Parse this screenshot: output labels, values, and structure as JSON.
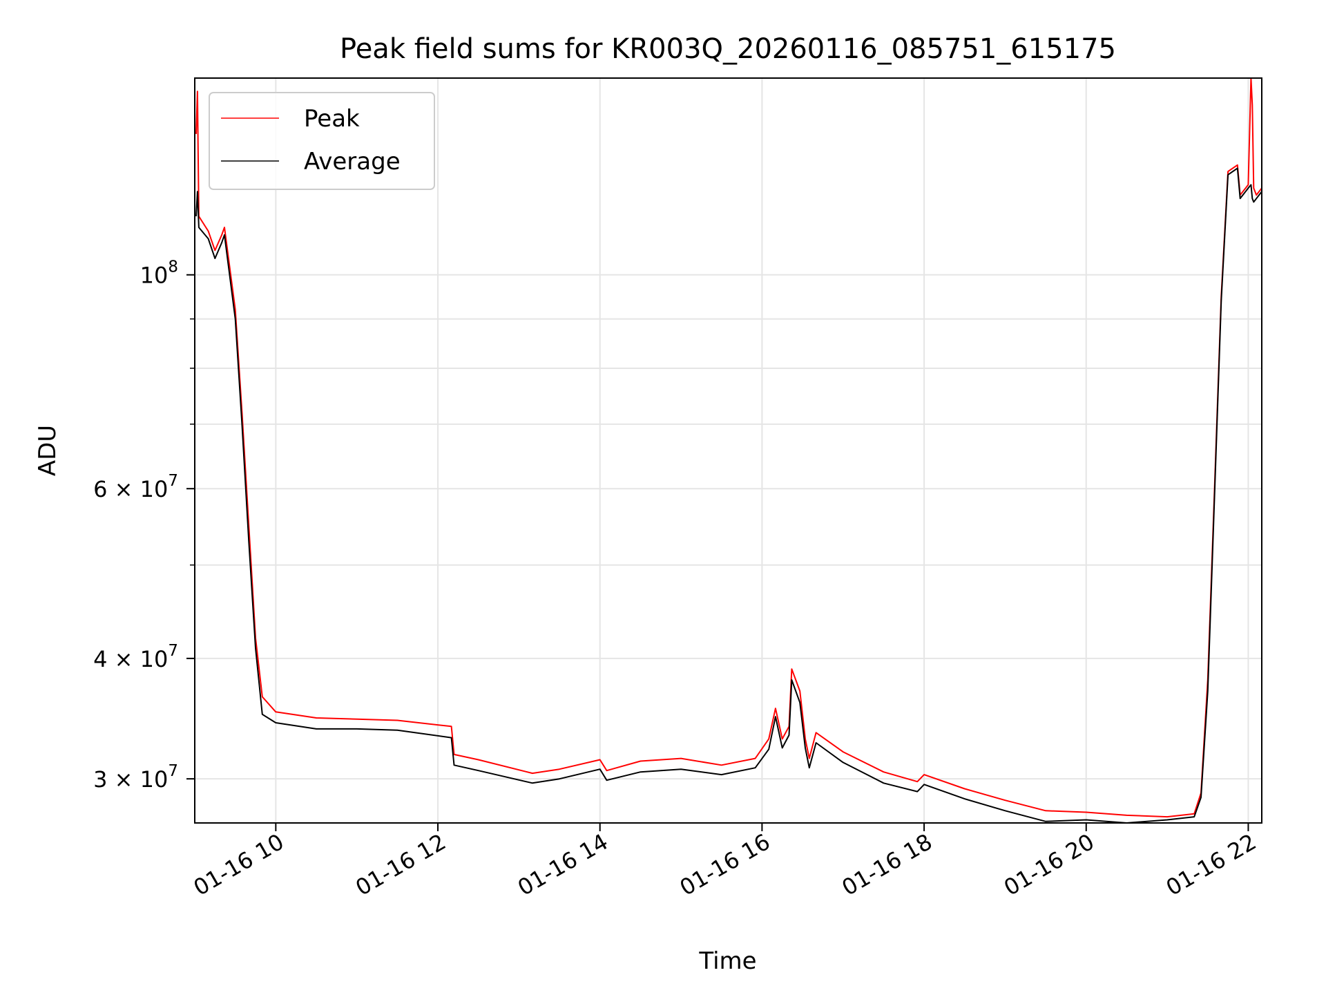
{
  "chart_data": {
    "type": "line",
    "title": "Peak field sums for KR003Q_20260116_085751_615175",
    "xlabel": "Time",
    "ylabel": "ADU",
    "yscale": "log",
    "grid": true,
    "legend_position": "top-left",
    "xlim": [
      "2026-01-16 09:00",
      "2026-01-16 22:10"
    ],
    "ylim": [
      27000000,
      160000000
    ],
    "x_ticks": [
      {
        "value": "2026-01-16 10:00",
        "label": "01-16 10"
      },
      {
        "value": "2026-01-16 12:00",
        "label": "01-16 12"
      },
      {
        "value": "2026-01-16 14:00",
        "label": "01-16 14"
      },
      {
        "value": "2026-01-16 16:00",
        "label": "01-16 16"
      },
      {
        "value": "2026-01-16 18:00",
        "label": "01-16 18"
      },
      {
        "value": "2026-01-16 20:00",
        "label": "01-16 20"
      },
      {
        "value": "2026-01-16 22:00",
        "label": "01-16 22"
      }
    ],
    "y_ticks": [
      {
        "value": 100000000,
        "label_base": "10",
        "label_exp": "8"
      },
      {
        "value": 60000000,
        "label_base": "6 × 10",
        "label_exp": "7"
      },
      {
        "value": 40000000,
        "label_base": "4 × 10",
        "label_exp": "7"
      },
      {
        "value": 30000000,
        "label_base": "3 × 10",
        "label_exp": "7"
      }
    ],
    "series": [
      {
        "name": "Peak",
        "color": "#ff0000",
        "points": [
          [
            "2026-01-16 09:01",
            140000000
          ],
          [
            "2026-01-16 09:02",
            155000000
          ],
          [
            "2026-01-16 09:03",
            115000000
          ],
          [
            "2026-01-16 09:10",
            111000000
          ],
          [
            "2026-01-16 09:15",
            106000000
          ],
          [
            "2026-01-16 09:20",
            110000000
          ],
          [
            "2026-01-16 09:22",
            112000000
          ],
          [
            "2026-01-16 09:25",
            104000000
          ],
          [
            "2026-01-16 09:30",
            92000000
          ],
          [
            "2026-01-16 09:35",
            72000000
          ],
          [
            "2026-01-16 09:40",
            55000000
          ],
          [
            "2026-01-16 09:45",
            42000000
          ],
          [
            "2026-01-16 09:50",
            36500000
          ],
          [
            "2026-01-16 10:00",
            35200000
          ],
          [
            "2026-01-16 10:30",
            34700000
          ],
          [
            "2026-01-16 11:00",
            34600000
          ],
          [
            "2026-01-16 11:30",
            34500000
          ],
          [
            "2026-01-16 12:10",
            34000000
          ],
          [
            "2026-01-16 12:12",
            31800000
          ],
          [
            "2026-01-16 12:30",
            31400000
          ],
          [
            "2026-01-16 13:10",
            30400000
          ],
          [
            "2026-01-16 13:30",
            30700000
          ],
          [
            "2026-01-16 14:00",
            31400000
          ],
          [
            "2026-01-16 14:05",
            30600000
          ],
          [
            "2026-01-16 14:30",
            31300000
          ],
          [
            "2026-01-16 15:00",
            31500000
          ],
          [
            "2026-01-16 15:30",
            31000000
          ],
          [
            "2026-01-16 15:55",
            31500000
          ],
          [
            "2026-01-16 16:05",
            33000000
          ],
          [
            "2026-01-16 16:10",
            35500000
          ],
          [
            "2026-01-16 16:15",
            33000000
          ],
          [
            "2026-01-16 16:20",
            34000000
          ],
          [
            "2026-01-16 16:22",
            39000000
          ],
          [
            "2026-01-16 16:28",
            37000000
          ],
          [
            "2026-01-16 16:32",
            33000000
          ],
          [
            "2026-01-16 16:35",
            31500000
          ],
          [
            "2026-01-16 16:40",
            33500000
          ],
          [
            "2026-01-16 17:00",
            32000000
          ],
          [
            "2026-01-16 17:30",
            30500000
          ],
          [
            "2026-01-16 17:55",
            29800000
          ],
          [
            "2026-01-16 18:00",
            30300000
          ],
          [
            "2026-01-16 18:30",
            29300000
          ],
          [
            "2026-01-16 19:00",
            28500000
          ],
          [
            "2026-01-16 19:30",
            27800000
          ],
          [
            "2026-01-16 20:00",
            27700000
          ],
          [
            "2026-01-16 20:30",
            27500000
          ],
          [
            "2026-01-16 21:00",
            27400000
          ],
          [
            "2026-01-16 21:20",
            27600000
          ],
          [
            "2026-01-16 21:25",
            29000000
          ],
          [
            "2026-01-16 21:30",
            38000000
          ],
          [
            "2026-01-16 21:35",
            60000000
          ],
          [
            "2026-01-16 21:40",
            95000000
          ],
          [
            "2026-01-16 21:45",
            128000000
          ],
          [
            "2026-01-16 21:52",
            130000000
          ],
          [
            "2026-01-16 21:54",
            121000000
          ],
          [
            "2026-01-16 22:00",
            124000000
          ],
          [
            "2026-01-16 22:02",
            160000000
          ],
          [
            "2026-01-16 22:03",
            150000000
          ],
          [
            "2026-01-16 22:04",
            123000000
          ],
          [
            "2026-01-16 22:06",
            121000000
          ],
          [
            "2026-01-16 22:10",
            123000000
          ]
        ]
      },
      {
        "name": "Average",
        "color": "#000000",
        "points": [
          [
            "2026-01-16 09:01",
            115000000
          ],
          [
            "2026-01-16 09:02",
            122000000
          ],
          [
            "2026-01-16 09:03",
            112000000
          ],
          [
            "2026-01-16 09:10",
            109000000
          ],
          [
            "2026-01-16 09:15",
            104000000
          ],
          [
            "2026-01-16 09:20",
            108000000
          ],
          [
            "2026-01-16 09:22",
            110000000
          ],
          [
            "2026-01-16 09:25",
            102000000
          ],
          [
            "2026-01-16 09:30",
            90000000
          ],
          [
            "2026-01-16 09:35",
            70000000
          ],
          [
            "2026-01-16 09:40",
            53000000
          ],
          [
            "2026-01-16 09:45",
            41000000
          ],
          [
            "2026-01-16 09:50",
            35000000
          ],
          [
            "2026-01-16 10:00",
            34300000
          ],
          [
            "2026-01-16 10:30",
            33800000
          ],
          [
            "2026-01-16 11:00",
            33800000
          ],
          [
            "2026-01-16 11:30",
            33700000
          ],
          [
            "2026-01-16 12:10",
            33100000
          ],
          [
            "2026-01-16 12:12",
            31000000
          ],
          [
            "2026-01-16 12:30",
            30600000
          ],
          [
            "2026-01-16 13:10",
            29700000
          ],
          [
            "2026-01-16 13:30",
            30000000
          ],
          [
            "2026-01-16 14:00",
            30700000
          ],
          [
            "2026-01-16 14:05",
            29900000
          ],
          [
            "2026-01-16 14:30",
            30500000
          ],
          [
            "2026-01-16 15:00",
            30700000
          ],
          [
            "2026-01-16 15:30",
            30300000
          ],
          [
            "2026-01-16 15:55",
            30800000
          ],
          [
            "2026-01-16 16:05",
            32200000
          ],
          [
            "2026-01-16 16:10",
            34800000
          ],
          [
            "2026-01-16 16:15",
            32300000
          ],
          [
            "2026-01-16 16:20",
            33300000
          ],
          [
            "2026-01-16 16:22",
            38000000
          ],
          [
            "2026-01-16 16:28",
            36000000
          ],
          [
            "2026-01-16 16:32",
            32300000
          ],
          [
            "2026-01-16 16:35",
            30800000
          ],
          [
            "2026-01-16 16:40",
            32700000
          ],
          [
            "2026-01-16 17:00",
            31200000
          ],
          [
            "2026-01-16 17:30",
            29700000
          ],
          [
            "2026-01-16 17:55",
            29100000
          ],
          [
            "2026-01-16 18:00",
            29600000
          ],
          [
            "2026-01-16 18:30",
            28600000
          ],
          [
            "2026-01-16 19:00",
            27800000
          ],
          [
            "2026-01-16 19:30",
            27100000
          ],
          [
            "2026-01-16 20:00",
            27200000
          ],
          [
            "2026-01-16 20:30",
            27000000
          ],
          [
            "2026-01-16 21:00",
            27200000
          ],
          [
            "2026-01-16 21:20",
            27400000
          ],
          [
            "2026-01-16 21:25",
            28700000
          ],
          [
            "2026-01-16 21:30",
            37000000
          ],
          [
            "2026-01-16 21:35",
            59000000
          ],
          [
            "2026-01-16 21:40",
            94000000
          ],
          [
            "2026-01-16 21:45",
            127000000
          ],
          [
            "2026-01-16 21:52",
            129000000
          ],
          [
            "2026-01-16 21:54",
            120000000
          ],
          [
            "2026-01-16 22:00",
            123000000
          ],
          [
            "2026-01-16 22:02",
            124000000
          ],
          [
            "2026-01-16 22:03",
            120000000
          ],
          [
            "2026-01-16 22:04",
            119000000
          ],
          [
            "2026-01-16 22:06",
            120000000
          ],
          [
            "2026-01-16 22:10",
            122000000
          ]
        ]
      }
    ]
  }
}
